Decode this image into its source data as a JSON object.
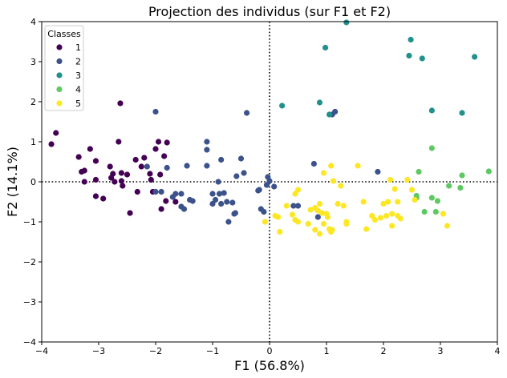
{
  "chart_data": {
    "type": "scatter",
    "title": "Projection des individus (sur F1 et F2)",
    "xlabel": "F1 (56.8%)",
    "ylabel": "F2 (14.1%)",
    "xlim": [
      -4,
      4
    ],
    "ylim": [
      -4,
      4
    ],
    "xticks": [
      -4,
      -3,
      -2,
      -1,
      0,
      1,
      2,
      3,
      4
    ],
    "yticks": [
      -4,
      -3,
      -2,
      -1,
      0,
      1,
      2,
      3,
      4
    ],
    "x_tick_labels": [
      "−4",
      "−3",
      "−2",
      "−1",
      "0",
      "1",
      "2",
      "3",
      "4"
    ],
    "y_tick_labels": [
      "−4",
      "−3",
      "−2",
      "−1",
      "0",
      "1",
      "2",
      "3",
      "4"
    ],
    "grid": false,
    "reference_lines": {
      "x": 0,
      "y": 0,
      "style": "dotted"
    },
    "legend": {
      "title": "Classes",
      "placement": "top-left"
    },
    "series": [
      {
        "name": "1",
        "color": "#440154",
        "points": [
          [
            -3.83,
            0.94
          ],
          [
            -3.75,
            1.22
          ],
          [
            -3.35,
            0.62
          ],
          [
            -3.3,
            0.25
          ],
          [
            -3.25,
            0.28
          ],
          [
            -3.25,
            0.0
          ],
          [
            -3.15,
            0.82
          ],
          [
            -3.05,
            0.52
          ],
          [
            -3.05,
            0.05
          ],
          [
            -3.05,
            -0.36
          ],
          [
            -2.92,
            -0.42
          ],
          [
            -2.8,
            0.38
          ],
          [
            -2.78,
            0.1
          ],
          [
            -2.75,
            0.2
          ],
          [
            -2.72,
            0.0
          ],
          [
            -2.65,
            1.0
          ],
          [
            -2.62,
            1.96
          ],
          [
            -2.6,
            0.22
          ],
          [
            -2.58,
            -0.1
          ],
          [
            -2.6,
            0.02
          ],
          [
            -2.5,
            0.18
          ],
          [
            -2.45,
            -0.78
          ],
          [
            -2.35,
            0.55
          ],
          [
            -2.32,
            -0.25
          ],
          [
            -2.25,
            0.38
          ],
          [
            -2.2,
            0.6
          ],
          [
            -2.1,
            0.2
          ],
          [
            -2.08,
            0.05
          ],
          [
            -2.05,
            -0.25
          ],
          [
            -2.0,
            0.82
          ],
          [
            -1.95,
            1.0
          ],
          [
            -1.92,
            0.18
          ],
          [
            -1.9,
            -0.68
          ],
          [
            -1.85,
            0.64
          ],
          [
            -1.8,
            0.98
          ],
          [
            -1.82,
            -0.48
          ],
          [
            -1.65,
            -0.5
          ]
        ]
      },
      {
        "name": "2",
        "color": "#3b528b",
        "points": [
          [
            -2.15,
            0.38
          ],
          [
            -2.0,
            1.75
          ],
          [
            -2.0,
            -0.25
          ],
          [
            -1.9,
            -0.25
          ],
          [
            -1.8,
            0.35
          ],
          [
            -1.7,
            -0.38
          ],
          [
            -1.65,
            -0.3
          ],
          [
            -1.55,
            -0.3
          ],
          [
            -1.55,
            -0.62
          ],
          [
            -1.5,
            -0.68
          ],
          [
            -1.45,
            0.4
          ],
          [
            -1.4,
            -0.45
          ],
          [
            -1.35,
            -0.48
          ],
          [
            -1.1,
            0.8
          ],
          [
            -1.1,
            0.4
          ],
          [
            -1.1,
            1.0
          ],
          [
            -1.0,
            -0.3
          ],
          [
            -1.0,
            -0.55
          ],
          [
            -0.95,
            -0.45
          ],
          [
            -0.9,
            0.0
          ],
          [
            -0.88,
            -0.3
          ],
          [
            -0.85,
            0.55
          ],
          [
            -0.85,
            -0.55
          ],
          [
            -0.8,
            -0.28
          ],
          [
            -0.75,
            -0.5
          ],
          [
            -0.72,
            -1.0
          ],
          [
            -0.65,
            -0.52
          ],
          [
            -0.62,
            -0.8
          ],
          [
            -0.6,
            -0.78
          ],
          [
            -0.58,
            0.14
          ],
          [
            -0.5,
            0.58
          ],
          [
            -0.45,
            0.22
          ],
          [
            -0.4,
            1.72
          ],
          [
            -0.2,
            -0.22
          ],
          [
            -0.18,
            -0.2
          ],
          [
            -0.15,
            -0.68
          ],
          [
            -0.1,
            -0.75
          ],
          [
            -0.05,
            -0.08
          ],
          [
            -0.03,
            0.12
          ],
          [
            0.0,
            0.02
          ],
          [
            0.08,
            -0.12
          ],
          [
            0.42,
            -0.6
          ],
          [
            0.5,
            -0.6
          ],
          [
            0.78,
            0.45
          ],
          [
            0.85,
            -0.88
          ],
          [
            1.1,
            1.68
          ],
          [
            1.15,
            1.75
          ],
          [
            1.9,
            0.25
          ]
        ]
      },
      {
        "name": "3",
        "color": "#21918c",
        "points": [
          [
            0.22,
            1.9
          ],
          [
            0.88,
            1.98
          ],
          [
            0.98,
            3.35
          ],
          [
            1.05,
            1.68
          ],
          [
            1.35,
            3.98
          ],
          [
            2.45,
            3.15
          ],
          [
            2.48,
            3.55
          ],
          [
            2.68,
            3.08
          ],
          [
            2.85,
            1.78
          ],
          [
            3.38,
            1.72
          ],
          [
            3.6,
            3.12
          ]
        ]
      },
      {
        "name": "4",
        "color": "#5ec962",
        "points": [
          [
            2.58,
            -0.35
          ],
          [
            2.58,
            -0.4
          ],
          [
            2.62,
            0.25
          ],
          [
            2.72,
            -0.75
          ],
          [
            2.85,
            0.84
          ],
          [
            2.85,
            -0.4
          ],
          [
            2.92,
            -0.75
          ],
          [
            2.95,
            -0.48
          ],
          [
            3.15,
            -0.1
          ],
          [
            3.35,
            -0.15
          ],
          [
            3.38,
            0.16
          ],
          [
            3.85,
            0.26
          ]
        ]
      },
      {
        "name": "5",
        "color": "#fde725",
        "points": [
          [
            -0.08,
            -1.0
          ],
          [
            0.1,
            -0.85
          ],
          [
            0.15,
            -0.88
          ],
          [
            0.18,
            -1.25
          ],
          [
            0.3,
            -0.6
          ],
          [
            0.4,
            -0.82
          ],
          [
            0.45,
            -0.3
          ],
          [
            0.45,
            -0.95
          ],
          [
            0.5,
            -0.2
          ],
          [
            0.5,
            -1.0
          ],
          [
            0.68,
            -1.05
          ],
          [
            0.72,
            -0.7
          ],
          [
            0.8,
            -0.65
          ],
          [
            0.8,
            -1.2
          ],
          [
            0.85,
            -0.72
          ],
          [
            0.88,
            -0.55
          ],
          [
            0.88,
            -1.3
          ],
          [
            0.92,
            -0.78
          ],
          [
            0.95,
            0.22
          ],
          [
            0.95,
            -1.05
          ],
          [
            1.0,
            -0.8
          ],
          [
            1.02,
            -0.88
          ],
          [
            1.05,
            -1.18
          ],
          [
            1.08,
            0.4
          ],
          [
            1.08,
            -1.25
          ],
          [
            1.1,
            -1.2
          ],
          [
            1.12,
            0.02
          ],
          [
            1.2,
            -0.55
          ],
          [
            1.25,
            -0.1
          ],
          [
            1.3,
            -0.6
          ],
          [
            1.35,
            -1.05
          ],
          [
            1.35,
            -1.0
          ],
          [
            1.55,
            0.4
          ],
          [
            1.65,
            -0.5
          ],
          [
            1.7,
            -1.18
          ],
          [
            1.8,
            -0.85
          ],
          [
            1.85,
            -0.95
          ],
          [
            1.95,
            -0.9
          ],
          [
            2.0,
            -0.55
          ],
          [
            2.05,
            -0.85
          ],
          [
            2.08,
            -0.5
          ],
          [
            2.12,
            0.05
          ],
          [
            2.15,
            -0.8
          ],
          [
            2.15,
            -1.1
          ],
          [
            2.2,
            -0.18
          ],
          [
            2.25,
            -0.5
          ],
          [
            2.25,
            -0.85
          ],
          [
            2.3,
            -0.92
          ],
          [
            2.42,
            0.05
          ],
          [
            2.5,
            -0.2
          ],
          [
            2.55,
            -0.45
          ],
          [
            3.05,
            -0.8
          ],
          [
            3.12,
            -1.1
          ]
        ]
      }
    ]
  }
}
